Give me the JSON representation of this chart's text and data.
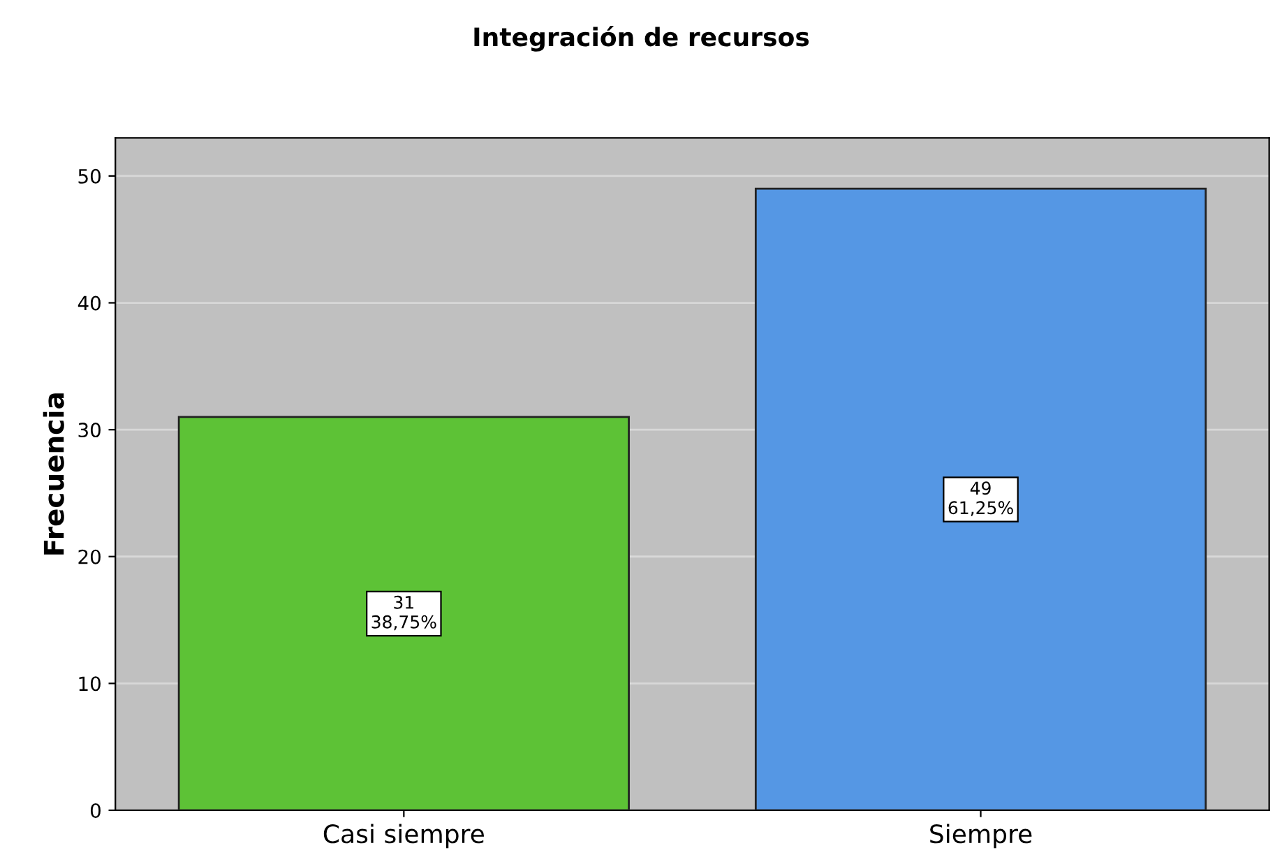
{
  "chart_data": {
    "type": "bar",
    "title": "Integración de recursos",
    "ylabel": "Frecuencia",
    "categories": [
      "Casi siempre",
      "Siempre"
    ],
    "values": [
      31,
      49
    ],
    "colors": [
      "#5dc236",
      "#5597e4"
    ],
    "value_labels": [
      "31\n38,75%",
      "49\n61,25%"
    ],
    "ylim": [
      0,
      53
    ],
    "yticks": [
      0,
      10,
      20,
      30,
      40,
      50
    ],
    "grid": "y",
    "legend": false
  }
}
